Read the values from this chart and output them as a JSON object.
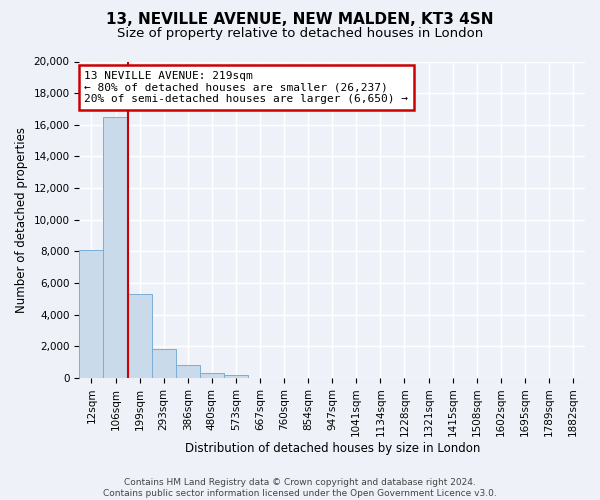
{
  "title": "13, NEVILLE AVENUE, NEW MALDEN, KT3 4SN",
  "subtitle": "Size of property relative to detached houses in London",
  "xlabel": "Distribution of detached houses by size in London",
  "ylabel": "Number of detached properties",
  "bin_labels": [
    "12sqm",
    "106sqm",
    "199sqm",
    "293sqm",
    "386sqm",
    "480sqm",
    "573sqm",
    "667sqm",
    "760sqm",
    "854sqm",
    "947sqm",
    "1041sqm",
    "1134sqm",
    "1228sqm",
    "1321sqm",
    "1415sqm",
    "1508sqm",
    "1602sqm",
    "1695sqm",
    "1789sqm",
    "1882sqm"
  ],
  "bar_heights": [
    8100,
    16500,
    5300,
    1800,
    800,
    300,
    200,
    0,
    0,
    0,
    0,
    0,
    0,
    0,
    0,
    0,
    0,
    0,
    0,
    0,
    0
  ],
  "bar_color": "#c9daea",
  "bar_edge_color": "#7aaed6",
  "vline_index": 2,
  "vline_color": "#cc0000",
  "ylim": [
    0,
    20000
  ],
  "yticks": [
    0,
    2000,
    4000,
    6000,
    8000,
    10000,
    12000,
    14000,
    16000,
    18000,
    20000
  ],
  "annotation_title": "13 NEVILLE AVENUE: 219sqm",
  "annotation_line1": "← 80% of detached houses are smaller (26,237)",
  "annotation_line2": "20% of semi-detached houses are larger (6,650) →",
  "annotation_box_color": "#ffffff",
  "annotation_box_edge": "#cc0000",
  "footer_line1": "Contains HM Land Registry data © Crown copyright and database right 2024.",
  "footer_line2": "Contains public sector information licensed under the Open Government Licence v3.0.",
  "bg_color": "#eef2f8",
  "plot_bg_color": "#eef2f8",
  "grid_color": "#ffffff",
  "title_fontsize": 11,
  "subtitle_fontsize": 9.5,
  "axis_label_fontsize": 8.5,
  "tick_fontsize": 7.5,
  "footer_fontsize": 6.5
}
